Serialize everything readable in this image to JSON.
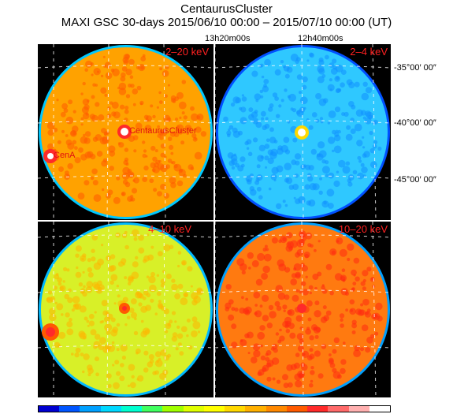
{
  "header": {
    "title": "CentaurusCluster",
    "subtitle": "MAXI GSC 30-days 2015/06/10 00:00 – 2015/07/10 00:00 (UT)"
  },
  "axes": {
    "ra_labels": [
      "13h20m00s",
      "12h40m00s"
    ],
    "dec_labels": [
      "-35°00′ 00″",
      "-40°00′ 00″",
      "-45°00′ 00″"
    ]
  },
  "panels": [
    {
      "band": "2–20 keV",
      "base_color": "#ffa200",
      "mottle_color": "#ff5a00",
      "sources": [
        "CentaurusCluster",
        "CenA"
      ]
    },
    {
      "band": "2–4 keV",
      "base_color": "#2fc8ff",
      "mottle_color": "#1090ff",
      "sources": []
    },
    {
      "band": "4–10 keV",
      "base_color": "#d8f028",
      "mottle_color": "#ffb400",
      "sources": []
    },
    {
      "band": "10–20 keV",
      "base_color": "#ff7a10",
      "mottle_color": "#ff2a10",
      "sources": []
    }
  ],
  "colorbar": {
    "colors": [
      "#0000d0",
      "#0055ff",
      "#00a0ff",
      "#00d8ff",
      "#00ffd0",
      "#40ff60",
      "#a0ff00",
      "#e0ff00",
      "#ffff00",
      "#ffd800",
      "#ffb000",
      "#ff8800",
      "#ff5a00",
      "#ff2a2a",
      "#ff6a6a",
      "#ffb0b0",
      "#ffffff"
    ]
  }
}
